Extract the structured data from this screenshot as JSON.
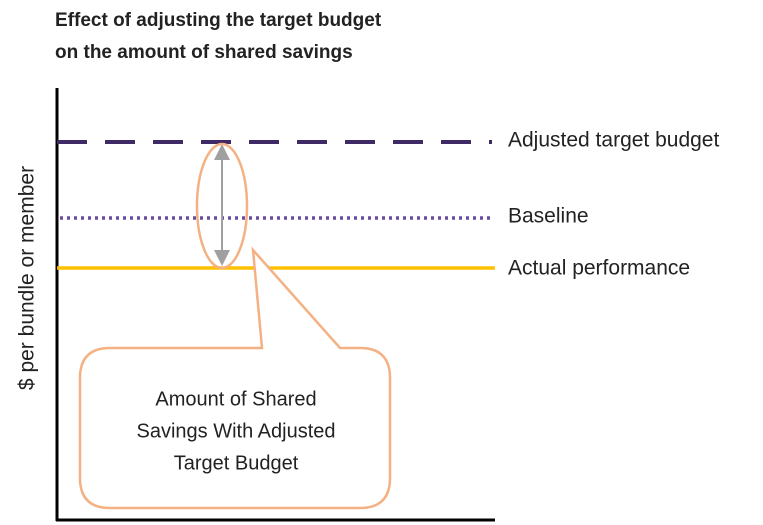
{
  "header": {
    "title_lines": [
      "Effect of adjusting the target budget",
      "on the amount of shared savings"
    ]
  },
  "axis": {
    "y_label": "$ per bundle or member"
  },
  "lines": [
    {
      "label": "Adjusted target budget"
    },
    {
      "label": "Baseline"
    },
    {
      "label": "Actual performance"
    }
  ],
  "callout": {
    "lines": [
      "Amount of Shared",
      "Savings With Adjusted",
      "Target Budget"
    ]
  }
}
